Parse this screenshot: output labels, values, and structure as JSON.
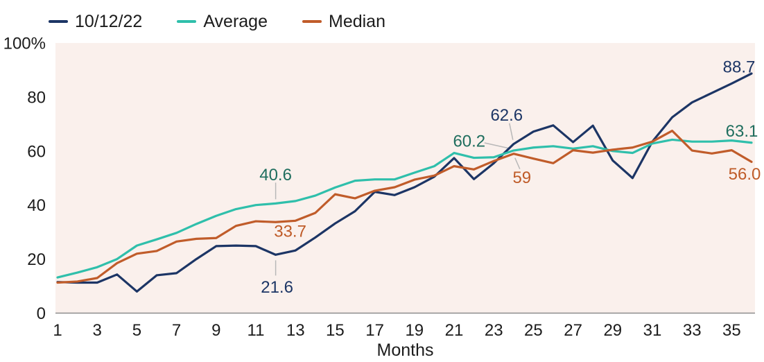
{
  "legend": [
    {
      "label": "10/12/22",
      "color": "#1c3565"
    },
    {
      "label": "Average",
      "color": "#2fbfab"
    },
    {
      "label": "Median",
      "color": "#c05c2a"
    }
  ],
  "axes": {
    "y_ticks": [
      {
        "value": 100,
        "label": "100%"
      },
      {
        "value": 80,
        "label": "80"
      },
      {
        "value": 60,
        "label": "60"
      },
      {
        "value": 40,
        "label": "40"
      },
      {
        "value": 20,
        "label": "20"
      },
      {
        "value": 0,
        "label": "0"
      }
    ],
    "x_ticks": [
      1,
      3,
      5,
      7,
      9,
      11,
      13,
      15,
      17,
      19,
      21,
      23,
      25,
      27,
      29,
      31,
      33,
      35
    ],
    "x_axis_label": "Months"
  },
  "colors": {
    "plot_bg": "#faf0ec",
    "axis_line": "#8c8c8c",
    "leader_line": "#b8b8b8",
    "text": "#1c1c1c"
  },
  "chart_data": {
    "type": "line",
    "x": [
      1,
      2,
      3,
      4,
      5,
      6,
      7,
      8,
      9,
      10,
      11,
      12,
      13,
      14,
      15,
      16,
      17,
      18,
      19,
      20,
      21,
      22,
      23,
      24,
      25,
      26,
      27,
      28,
      29,
      30,
      31,
      32,
      33,
      34,
      35,
      36
    ],
    "xlabel": "Months",
    "ylabel": "",
    "ylim": [
      0,
      100
    ],
    "grid": false,
    "legend_position": "top-left",
    "series": [
      {
        "name": "10/12/22",
        "color": "#1c3565",
        "label_color": "#1c3565",
        "values": [
          11.5,
          11.3,
          11.3,
          14.3,
          8,
          14,
          14.8,
          20,
          24.8,
          25,
          24.8,
          21.6,
          23.2,
          28,
          33.2,
          37.7,
          44.9,
          43.7,
          46.6,
          50.5,
          57.4,
          49.6,
          55.5,
          62.6,
          67.2,
          69.5,
          63.3,
          69.4,
          56.5,
          50,
          63.5,
          72.5,
          78,
          81.5,
          85,
          88.7
        ]
      },
      {
        "name": "Average",
        "color": "#2fbfab",
        "label_color": "#1f6e5e",
        "values": [
          13.2,
          15,
          17,
          20,
          25,
          27.3,
          29.7,
          33,
          36,
          38.5,
          40,
          40.6,
          41.5,
          43.5,
          46.5,
          49,
          49.5,
          49.5,
          52,
          54.4,
          59.3,
          57.5,
          57.7,
          60.2,
          61.3,
          61.8,
          60.9,
          61.8,
          60,
          59.3,
          62.8,
          64.2,
          63.5,
          63.5,
          63.9,
          63.1
        ]
      },
      {
        "name": "Median",
        "color": "#c05c2a",
        "label_color": "#bf5b28",
        "values": [
          11.3,
          11.7,
          13,
          18.5,
          22,
          23,
          26.5,
          27.5,
          27.8,
          32.3,
          34,
          33.7,
          34.2,
          37.1,
          44,
          42.5,
          45.3,
          46.6,
          49.4,
          50.9,
          54.4,
          53.2,
          56.3,
          59,
          57.2,
          55.5,
          60.3,
          59.4,
          60.5,
          61.3,
          63.5,
          67.5,
          60.2,
          59.1,
          60.3,
          56
        ]
      }
    ],
    "callouts": [
      {
        "id": "avg-12",
        "series": "Average",
        "month": 12,
        "value": 40.6,
        "text": "40.6",
        "color": "#1f6e5e"
      },
      {
        "id": "med-12",
        "series": "Median",
        "month": 12,
        "value": 33.7,
        "text": "33.7",
        "color": "#bf5b28"
      },
      {
        "id": "nav-12",
        "series": "10/12/22",
        "month": 12,
        "value": 21.6,
        "text": "21.6",
        "color": "#1c3565"
      },
      {
        "id": "nav-24",
        "series": "10/12/22",
        "month": 24,
        "value": 62.6,
        "text": "62.6",
        "color": "#1c3565"
      },
      {
        "id": "avg-24",
        "series": "Average",
        "month": 24,
        "value": 60.2,
        "text": "60.2",
        "color": "#1f6e5e"
      },
      {
        "id": "med-24",
        "series": "Median",
        "month": 24,
        "value": 59,
        "text": "59",
        "color": "#bf5b28"
      },
      {
        "id": "nav-36",
        "series": "10/12/22",
        "month": 36,
        "value": 88.7,
        "text": "88.7",
        "color": "#1c3565"
      },
      {
        "id": "avg-36",
        "series": "Average",
        "month": 36,
        "value": 63.1,
        "text": "63.1",
        "color": "#1f6e5e"
      },
      {
        "id": "med-36",
        "series": "Median",
        "month": 36,
        "value": 56,
        "text": "56.0",
        "color": "#bf5b28"
      }
    ]
  }
}
